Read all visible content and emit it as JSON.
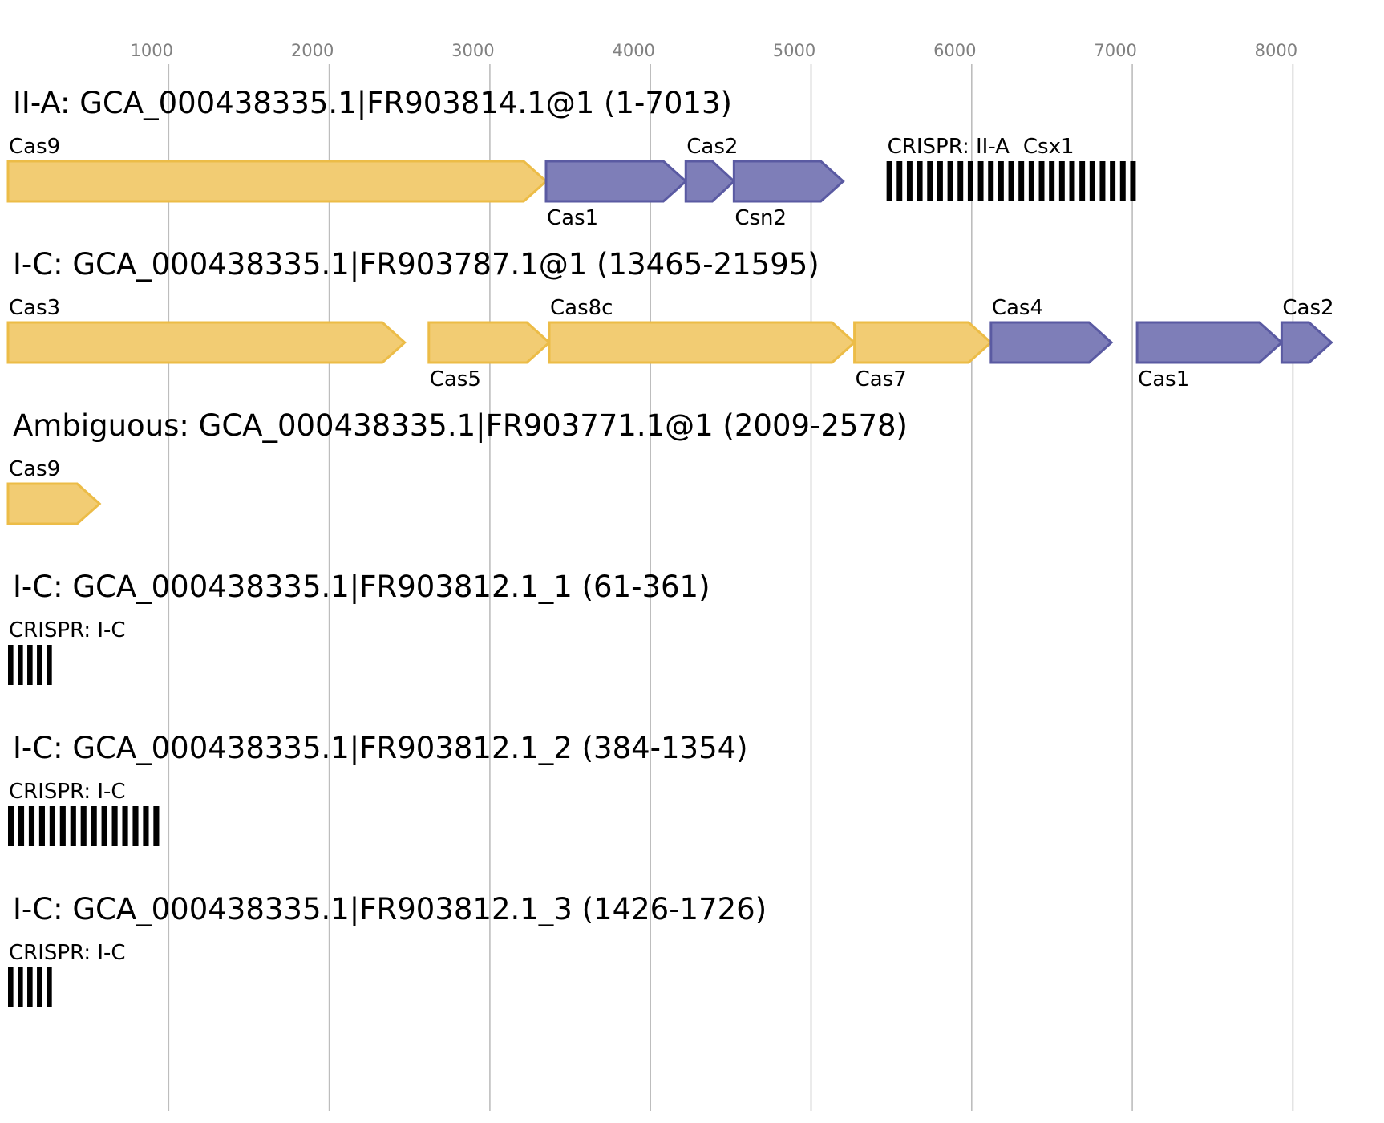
{
  "colors": {
    "group_a_fill": "#f2cc73",
    "group_a_stroke": "#ecbc47",
    "group_b_fill": "#7e7eb8",
    "group_b_stroke": "#5a5aa2",
    "crispr": "#000000",
    "grid": "#bdbdbd",
    "tick_text": "#808080"
  },
  "axis": {
    "ticks": [
      1000,
      2000,
      3000,
      4000,
      5000,
      6000,
      7000,
      8000
    ],
    "tick_labels": [
      "1000",
      "2000",
      "3000",
      "4000",
      "5000",
      "6000",
      "7000",
      "8000"
    ]
  },
  "tracks": [
    {
      "title": "II-A: GCA_000438335.1|FR903814.1@1 (1-7013)",
      "features": [
        {
          "type": "gene",
          "name": "Cas9",
          "start": 0,
          "end": 3350,
          "group": "a",
          "label_pos": "above"
        },
        {
          "type": "gene",
          "name": "Cas1",
          "start": 3350,
          "end": 4220,
          "group": "b",
          "label_pos": "below"
        },
        {
          "type": "gene",
          "name": "Cas2",
          "start": 4220,
          "end": 4520,
          "group": "b",
          "label_pos": "above"
        },
        {
          "type": "gene",
          "name": "Csn2",
          "start": 4520,
          "end": 5200,
          "group": "b",
          "label_pos": "below"
        },
        {
          "type": "crispr",
          "name": "CRISPR: II-A",
          "start": 5470,
          "end": 7050,
          "repeats": 25,
          "label_pos": "above"
        },
        {
          "type": "text",
          "name": "Csx1",
          "start": 6320,
          "label_pos": "above"
        }
      ]
    },
    {
      "title": "I-C: GCA_000438335.1|FR903787.1@1 (13465-21595)",
      "features": [
        {
          "type": "gene",
          "name": "Cas3",
          "start": 0,
          "end": 2470,
          "group": "a",
          "label_pos": "above"
        },
        {
          "type": "gene",
          "name": "Cas5",
          "start": 2620,
          "end": 3370,
          "group": "a",
          "label_pos": "below"
        },
        {
          "type": "gene",
          "name": "Cas8c",
          "start": 3370,
          "end": 5270,
          "group": "a",
          "label_pos": "above"
        },
        {
          "type": "gene",
          "name": "Cas7",
          "start": 5270,
          "end": 6120,
          "group": "a",
          "label_pos": "below"
        },
        {
          "type": "gene",
          "name": "Cas4",
          "start": 6120,
          "end": 6870,
          "group": "b",
          "label_pos": "above"
        },
        {
          "type": "gene",
          "name": "Cas1",
          "start": 7030,
          "end": 7930,
          "group": "b",
          "label_pos": "below"
        },
        {
          "type": "gene",
          "name": "Cas2",
          "start": 7930,
          "end": 8240,
          "group": "b",
          "label_pos": "above"
        }
      ]
    },
    {
      "title": "Ambiguous: GCA_000438335.1|FR903771.1@1 (2009-2578)",
      "features": [
        {
          "type": "gene",
          "name": "Cas9",
          "start": 0,
          "end": 570,
          "group": "a",
          "label_pos": "above"
        }
      ]
    },
    {
      "title": "I-C: GCA_000438335.1|FR903812.1_1 (61-361)",
      "features": [
        {
          "type": "crispr",
          "name": "CRISPR: I-C",
          "start": 0,
          "end": 300,
          "repeats": 5,
          "label_pos": "above"
        }
      ]
    },
    {
      "title": "I-C: GCA_000438335.1|FR903812.1_2 (384-1354)",
      "features": [
        {
          "type": "crispr",
          "name": "CRISPR: I-C",
          "start": 0,
          "end": 970,
          "repeats": 15,
          "label_pos": "above"
        }
      ]
    },
    {
      "title": "I-C: GCA_000438335.1|FR903812.1_3 (1426-1726)",
      "features": [
        {
          "type": "crispr",
          "name": "CRISPR: I-C",
          "start": 0,
          "end": 300,
          "repeats": 5,
          "label_pos": "above"
        }
      ]
    }
  ]
}
